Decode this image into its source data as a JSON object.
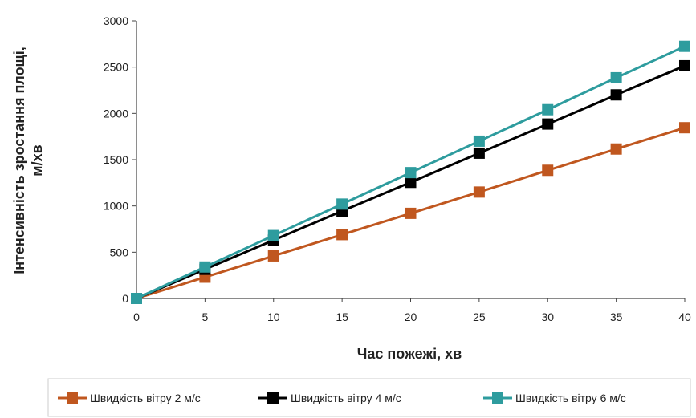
{
  "chart_data": {
    "type": "line",
    "xlabel": "Час пожежі, хв",
    "ylabel_line1": "Інтенсивність зростання площі,",
    "ylabel_line2": "м/хв",
    "x": [
      0,
      5,
      10,
      15,
      20,
      25,
      30,
      35,
      40
    ],
    "xlim": [
      0,
      40
    ],
    "ylim": [
      0,
      3000
    ],
    "x_ticks": [
      0,
      5,
      10,
      15,
      20,
      25,
      30,
      35,
      40
    ],
    "y_ticks": [
      0,
      500,
      1000,
      1500,
      2000,
      2500,
      3000
    ],
    "grid": false,
    "legend_position": "bottom",
    "series": [
      {
        "name": "Швидкість вітру 2 м/с",
        "color": "#c0571f",
        "values": [
          0,
          230,
          460,
          690,
          920,
          1150,
          1385,
          1615,
          1845
        ]
      },
      {
        "name": "Швидкість вітру 4 м/с",
        "color": "#000000",
        "values": [
          0,
          315,
          630,
          945,
          1255,
          1570,
          1885,
          2200,
          2515
        ]
      },
      {
        "name": "Швидкість вітру 6 м/с",
        "color": "#2e9c9e",
        "values": [
          0,
          340,
          680,
          1020,
          1360,
          1700,
          2040,
          2385,
          2725
        ]
      }
    ]
  }
}
